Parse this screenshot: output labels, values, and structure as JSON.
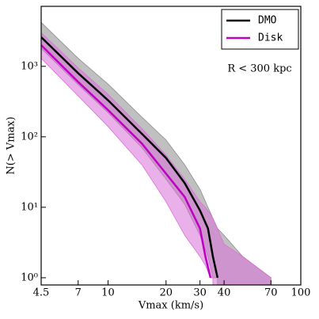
{
  "chart_data": {
    "type": "line",
    "xlabel": "Vmax (km/s)",
    "ylabel": "N(> Vmax)",
    "annotation": "R < 300 kpc",
    "xscale": "log",
    "yscale": "log",
    "xlim": [
      4.5,
      100
    ],
    "ylim": [
      0.79,
      7100
    ],
    "xticks": [
      4.5,
      7,
      10,
      20,
      30,
      40,
      70,
      100
    ],
    "yticks": [
      {
        "value": 1,
        "label": "10⁰"
      },
      {
        "value": 10,
        "label": "10¹"
      },
      {
        "value": 100,
        "label": "10²"
      },
      {
        "value": 1000,
        "label": "10³"
      }
    ],
    "legend": "upper right",
    "series": [
      {
        "name": "DMO",
        "color": "#000000",
        "band_color": "#8c8c8c",
        "x": [
          4.5,
          7,
          10,
          15,
          20,
          25,
          30,
          33,
          35,
          37,
          40,
          50,
          70
        ],
        "values": [
          2600,
          800,
          330,
          110,
          50,
          22,
          9,
          5,
          2,
          1,
          null,
          null,
          null
        ],
        "upper": [
          4200,
          1300,
          560,
          190,
          90,
          40,
          18,
          10,
          7,
          5,
          4,
          2,
          1
        ],
        "lower": [
          1800,
          550,
          220,
          70,
          25,
          11,
          4,
          2,
          1,
          1,
          null,
          null,
          null
        ]
      },
      {
        "name": "Disk",
        "color": "#c000c0",
        "band_color": "#d970d9",
        "x": [
          4.5,
          7,
          10,
          15,
          20,
          25,
          30,
          32,
          34,
          35,
          40,
          50,
          70
        ],
        "values": [
          2000,
          600,
          240,
          80,
          30,
          14,
          5,
          2,
          1,
          null,
          null,
          null,
          null
        ],
        "upper": [
          3000,
          950,
          400,
          130,
          55,
          25,
          12,
          10,
          8,
          7,
          3,
          2,
          1
        ],
        "lower": [
          1300,
          380,
          140,
          40,
          12,
          4,
          2,
          1.5,
          1,
          1,
          null,
          null,
          null
        ]
      }
    ]
  }
}
